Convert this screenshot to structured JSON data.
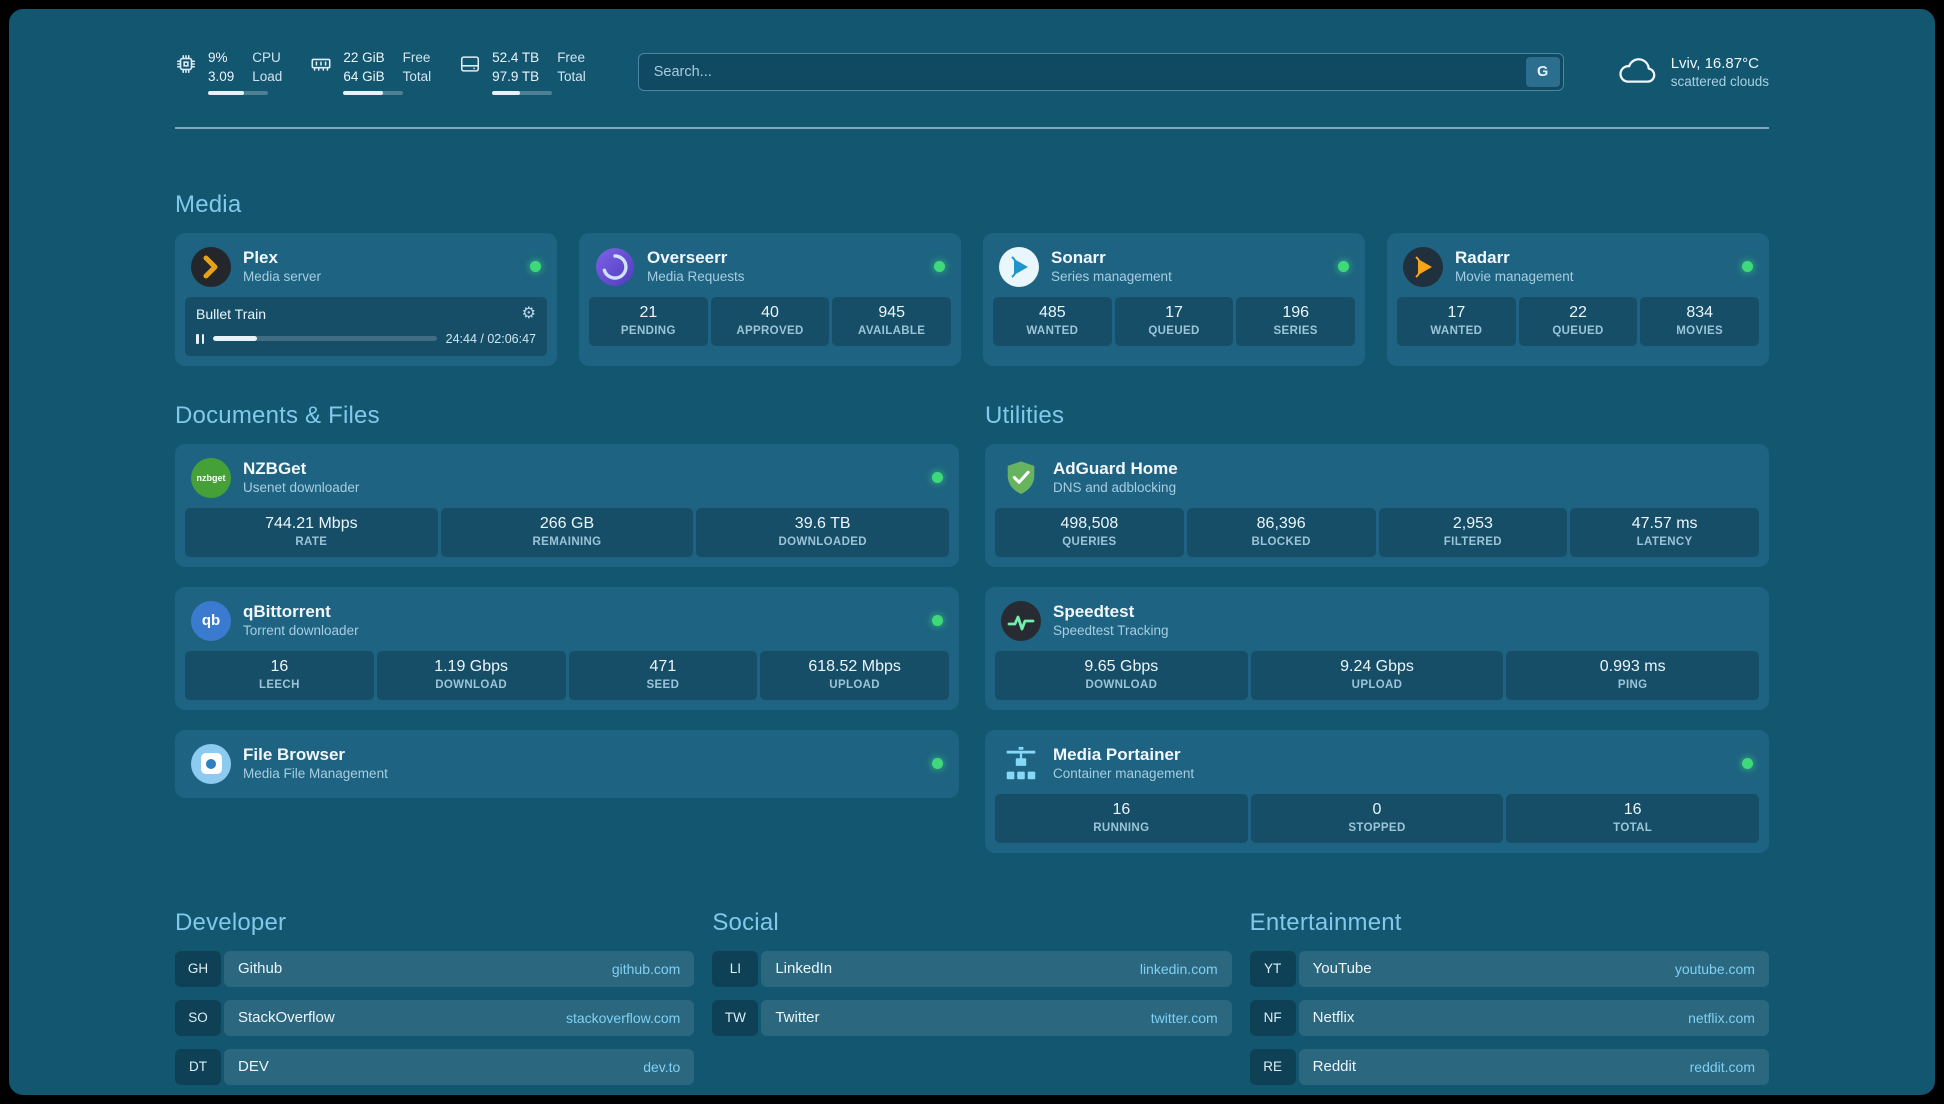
{
  "colors": {
    "page_bg": "#135670",
    "card_bg": "#1e6381",
    "heading": "#83c8eb",
    "status_green": "#3ed97b",
    "domain_link": "#7fd0f4",
    "plex_accent": "#e6a318"
  },
  "icons": {
    "gear": "⚙"
  },
  "header": {
    "resources": [
      {
        "val1": "9%",
        "lab1": "CPU",
        "val2": "3.09",
        "lab2": "Load",
        "progress": 60
      },
      {
        "val1": "22 GiB",
        "lab1": "Free",
        "val2": "64 GiB",
        "lab2": "Total",
        "progress": 66
      },
      {
        "val1": "52.4 TB",
        "lab1": "Free",
        "val2": "97.9 TB",
        "lab2": "Total",
        "progress": 46
      }
    ],
    "search": {
      "placeholder": "Search...",
      "button": "G"
    },
    "weather": {
      "location": "Lviv, 16.87°C",
      "condition": "scattered clouds"
    }
  },
  "media": {
    "title": "Media",
    "plex": {
      "name": "Plex",
      "subtitle": "Media server",
      "now_playing": "Bullet Train",
      "time": "24:44 / 02:06:47",
      "progress": 19.5
    },
    "overseerr": {
      "name": "Overseerr",
      "subtitle": "Media Requests",
      "stats": [
        {
          "value": "21",
          "label": "PENDING"
        },
        {
          "value": "40",
          "label": "APPROVED"
        },
        {
          "value": "945",
          "label": "AVAILABLE"
        }
      ]
    },
    "sonarr": {
      "name": "Sonarr",
      "subtitle": "Series management",
      "stats": [
        {
          "value": "485",
          "label": "WANTED"
        },
        {
          "value": "17",
          "label": "QUEUED"
        },
        {
          "value": "196",
          "label": "SERIES"
        }
      ]
    },
    "radarr": {
      "name": "Radarr",
      "subtitle": "Movie management",
      "stats": [
        {
          "value": "17",
          "label": "WANTED"
        },
        {
          "value": "22",
          "label": "QUEUED"
        },
        {
          "value": "834",
          "label": "MOVIES"
        }
      ]
    }
  },
  "documents": {
    "title": "Documents & Files",
    "nzbget": {
      "name": "NZBGet",
      "subtitle": "Usenet downloader",
      "icon_text": "nzbget",
      "stats": [
        {
          "value": "744.21 Mbps",
          "label": "RATE"
        },
        {
          "value": "266 GB",
          "label": "REMAINING"
        },
        {
          "value": "39.6 TB",
          "label": "DOWNLOADED"
        }
      ]
    },
    "qbittorrent": {
      "name": "qBittorrent",
      "subtitle": "Torrent downloader",
      "icon_text": "qb",
      "stats": [
        {
          "value": "16",
          "label": "LEECH"
        },
        {
          "value": "1.19 Gbps",
          "label": "DOWNLOAD"
        },
        {
          "value": "471",
          "label": "SEED"
        },
        {
          "value": "618.52 Mbps",
          "label": "UPLOAD"
        }
      ]
    },
    "filebrowser": {
      "name": "File Browser",
      "subtitle": "Media File Management"
    }
  },
  "utilities": {
    "title": "Utilities",
    "adguard": {
      "name": "AdGuard Home",
      "subtitle": "DNS and adblocking",
      "stats": [
        {
          "value": "498,508",
          "label": "QUERIES"
        },
        {
          "value": "86,396",
          "label": "BLOCKED"
        },
        {
          "value": "2,953",
          "label": "FILTERED"
        },
        {
          "value": "47.57 ms",
          "label": "LATENCY"
        }
      ]
    },
    "speedtest": {
      "name": "Speedtest",
      "subtitle": "Speedtest Tracking",
      "stats": [
        {
          "value": "9.65 Gbps",
          "label": "DOWNLOAD"
        },
        {
          "value": "9.24 Gbps",
          "label": "UPLOAD"
        },
        {
          "value": "0.993 ms",
          "label": "PING"
        }
      ]
    },
    "portainer": {
      "name": "Media Portainer",
      "subtitle": "Container management",
      "stats": [
        {
          "value": "16",
          "label": "RUNNING"
        },
        {
          "value": "0",
          "label": "STOPPED"
        },
        {
          "value": "16",
          "label": "TOTAL"
        }
      ]
    }
  },
  "bookmarks": {
    "developer": {
      "title": "Developer",
      "items": [
        {
          "abbr": "GH",
          "name": "Github",
          "domain": "github.com"
        },
        {
          "abbr": "SO",
          "name": "StackOverflow",
          "domain": "stackoverflow.com"
        },
        {
          "abbr": "DT",
          "name": "DEV",
          "domain": "dev.to"
        }
      ]
    },
    "social": {
      "title": "Social",
      "items": [
        {
          "abbr": "LI",
          "name": "LinkedIn",
          "domain": "linkedin.com"
        },
        {
          "abbr": "TW",
          "name": "Twitter",
          "domain": "twitter.com"
        }
      ]
    },
    "entertainment": {
      "title": "Entertainment",
      "items": [
        {
          "abbr": "YT",
          "name": "YouTube",
          "domain": "youtube.com"
        },
        {
          "abbr": "NF",
          "name": "Netflix",
          "domain": "netflix.com"
        },
        {
          "abbr": "RE",
          "name": "Reddit",
          "domain": "reddit.com"
        }
      ]
    }
  }
}
